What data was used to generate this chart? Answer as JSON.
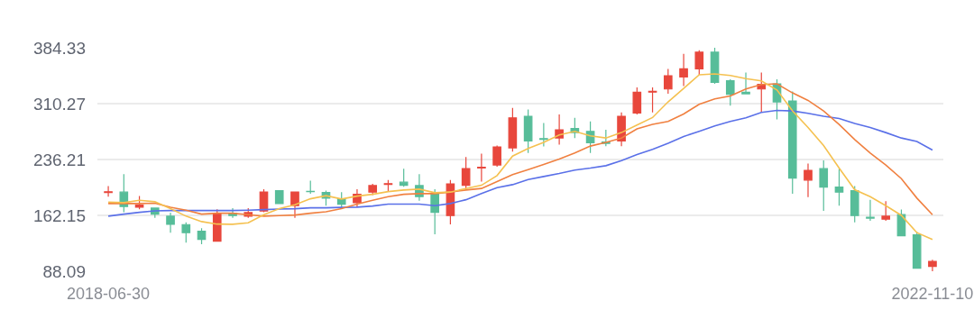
{
  "chart_data": {
    "type": "candlestick",
    "categories": [
      "2018-06-30",
      null,
      null,
      null,
      null,
      null,
      null,
      null,
      null,
      null,
      null,
      null,
      null,
      null,
      null,
      null,
      null,
      null,
      null,
      null,
      null,
      null,
      null,
      null,
      null,
      null,
      null,
      null,
      null,
      null,
      null,
      null,
      null,
      null,
      null,
      null,
      null,
      null,
      null,
      null,
      null,
      null,
      null,
      null,
      null,
      null,
      null,
      null,
      null,
      null,
      null,
      null,
      null,
      "2022-11-10"
    ],
    "ohlc": [
      [
        192.5,
        200.9,
        187.0,
        193.5
      ],
      [
        193.0,
        216.9,
        166.2,
        173.8
      ],
      [
        173.0,
        187.7,
        170.3,
        175.7
      ],
      [
        171.8,
        171.8,
        159.0,
        163.8
      ],
      [
        161.1,
        165.8,
        139.2,
        150.3
      ],
      [
        149.9,
        153.0,
        126.0,
        139.2
      ],
      [
        141.1,
        145.1,
        123.9,
        130.3
      ],
      [
        127.9,
        170.3,
        127.9,
        165.0
      ],
      [
        165.0,
        171.8,
        159.0,
        161.9
      ],
      [
        161.1,
        171.8,
        159.0,
        165.8
      ],
      [
        167.9,
        196.9,
        166.2,
        193.0
      ],
      [
        194.9,
        194.9,
        177.8,
        177.8
      ],
      [
        175.0,
        193.0,
        159.0,
        193.0
      ],
      [
        194.0,
        208.0,
        190.9,
        193.5
      ],
      [
        192.5,
        194.9,
        175.0,
        185.0
      ],
      [
        184.1,
        193.0,
        173.0,
        176.9
      ],
      [
        179.0,
        196.9,
        173.0,
        190.1
      ],
      [
        193.0,
        204.1,
        188.9,
        201.7
      ],
      [
        203.2,
        208.9,
        193.7,
        204.2
      ],
      [
        206.1,
        224.1,
        200.2,
        202.1
      ],
      [
        201.7,
        216.9,
        181.7,
        187.0
      ],
      [
        190.1,
        196.9,
        137.1,
        166.2
      ],
      [
        161.9,
        208.9,
        150.3,
        203.7
      ],
      [
        202.1,
        239.6,
        198.1,
        224.1
      ],
      [
        225.0,
        243.9,
        206.9,
        226.0
      ],
      [
        228.9,
        254.7,
        226.8,
        252.8
      ],
      [
        251.6,
        304.6,
        246.8,
        291.4
      ],
      [
        293.4,
        302.5,
        244.8,
        260.7
      ],
      [
        264.0,
        284.6,
        253.5,
        263.0
      ],
      [
        264.8,
        295.8,
        255.9,
        275.5
      ],
      [
        277.4,
        291.4,
        264.7,
        271.9
      ],
      [
        273.5,
        286.6,
        244.8,
        258.3
      ],
      [
        259.5,
        275.5,
        253.9,
        257.6
      ],
      [
        260.7,
        298.6,
        253.9,
        293.4
      ],
      [
        297.7,
        331.7,
        295.8,
        325.3
      ],
      [
        325.5,
        331.7,
        298.6,
        326.5
      ],
      [
        329.7,
        356.4,
        323.3,
        347.3
      ],
      [
        345.6,
        376.3,
        333.6,
        356.4
      ],
      [
        356.4,
        381.1,
        348.5,
        378.4
      ],
      [
        378.4,
        384.33,
        336.5,
        338.4
      ],
      [
        340.5,
        342.5,
        307.6,
        322.5
      ],
      [
        325.3,
        351.6,
        322.5,
        323.3
      ],
      [
        329.7,
        351.6,
        298.6,
        335.7
      ],
      [
        336.5,
        342.5,
        289.4,
        312.6
      ],
      [
        313.8,
        326.5,
        190.9,
        211.6
      ],
      [
        208.9,
        230.8,
        186.2,
        221.7
      ],
      [
        224.1,
        234.9,
        168.2,
        199.7
      ],
      [
        199.7,
        224.1,
        175.0,
        193.0
      ],
      [
        194.9,
        200.9,
        153.0,
        161.9
      ],
      [
        159.5,
        182.9,
        155.1,
        158.5
      ],
      [
        157.1,
        181.0,
        155.1,
        161.1
      ],
      [
        163.1,
        169.8,
        135.1,
        135.1
      ],
      [
        136.3,
        140.4,
        92.0,
        92.0
      ],
      [
        94.4,
        103.3,
        88.09,
        101.2
      ]
    ],
    "colors": [
      "#e8473c",
      "#57bd99",
      "#e8473c",
      "#57bd99",
      "#57bd99",
      "#57bd99",
      "#57bd99",
      "#e8473c",
      "#57bd99",
      "#e8473c",
      "#e8473c",
      "#57bd99",
      "#e8473c",
      "#57bd99",
      "#57bd99",
      "#57bd99",
      "#e8473c",
      "#e8473c",
      "#e8473c",
      "#57bd99",
      "#57bd99",
      "#57bd99",
      "#e8473c",
      "#e8473c",
      "#e8473c",
      "#e8473c",
      "#e8473c",
      "#57bd99",
      "#57bd99",
      "#e8473c",
      "#57bd99",
      "#57bd99",
      "#57bd99",
      "#e8473c",
      "#e8473c",
      "#e8473c",
      "#e8473c",
      "#e8473c",
      "#e8473c",
      "#57bd99",
      "#57bd99",
      "#57bd99",
      "#e8473c",
      "#57bd99",
      "#57bd99",
      "#e8473c",
      "#57bd99",
      "#57bd99",
      "#57bd99",
      "#57bd99",
      "#e8473c",
      "#57bd99",
      "#57bd99",
      "#e8473c"
    ],
    "series": [
      {
        "type": "line",
        "color": "#5a70e8",
        "values": [
          161.1,
          163.8,
          166.2,
          168.2,
          168.6,
          168.6,
          168.6,
          168.6,
          168.6,
          169.1,
          169.8,
          170.6,
          171.0,
          172.2,
          172.2,
          172.7,
          173.0,
          174.6,
          177.0,
          177.0,
          177.0,
          175.0,
          177.8,
          182.9,
          191.0,
          199.0,
          202.9,
          209.7,
          213.7,
          217.6,
          222.1,
          224.8,
          228.0,
          234.8,
          242.7,
          249.6,
          257.6,
          266.7,
          273.5,
          280.7,
          286.6,
          291.4,
          298.6,
          301.3,
          300.6,
          297.4,
          293.5,
          290.6,
          283.9,
          278.6,
          271.9,
          264.7,
          260.0,
          248.7
        ]
      },
      {
        "type": "line",
        "color": "#f08040",
        "values": [
          177.8,
          177.8,
          177.8,
          178.2,
          173.0,
          169.1,
          163.8,
          165.0,
          165.0,
          163.1,
          161.1,
          161.9,
          162.6,
          165.0,
          167.0,
          171.0,
          177.0,
          182.2,
          187.0,
          190.1,
          191.0,
          191.0,
          193.0,
          195.7,
          197.8,
          206.9,
          216.1,
          222.9,
          229.6,
          236.8,
          244.8,
          254.0,
          258.8,
          264.7,
          276.7,
          282.7,
          286.6,
          296.6,
          309.4,
          316.5,
          320.5,
          329.7,
          335.7,
          336.5,
          324.5,
          314.5,
          300.6,
          282.7,
          262.7,
          244.8,
          228.9,
          210.9,
          185.0,
          163.1
        ]
      },
      {
        "type": "line",
        "color": "#f5c150",
        "values": [
          179.8,
          179.0,
          182.2,
          180.2,
          171.0,
          161.1,
          153.9,
          150.6,
          150.3,
          152.3,
          163.1,
          171.0,
          176.2,
          184.1,
          188.2,
          183.8,
          187.7,
          190.1,
          193.7,
          195.7,
          196.9,
          192.2,
          193.0,
          197.8,
          202.1,
          214.9,
          240.8,
          250.8,
          258.8,
          268.7,
          273.5,
          267.5,
          264.7,
          271.9,
          281.9,
          291.8,
          312.6,
          330.5,
          348.5,
          349.7,
          347.6,
          343.4,
          340.5,
          328.5,
          300.6,
          278.6,
          254.7,
          224.8,
          196.1,
          187.0,
          175.0,
          162.2,
          139.2,
          130.3
        ]
      }
    ],
    "ylim": [
      88.09,
      384.33
    ],
    "yticks": [
      88.09,
      162.15,
      236.21,
      310.27,
      384.33
    ],
    "grid": "y"
  }
}
